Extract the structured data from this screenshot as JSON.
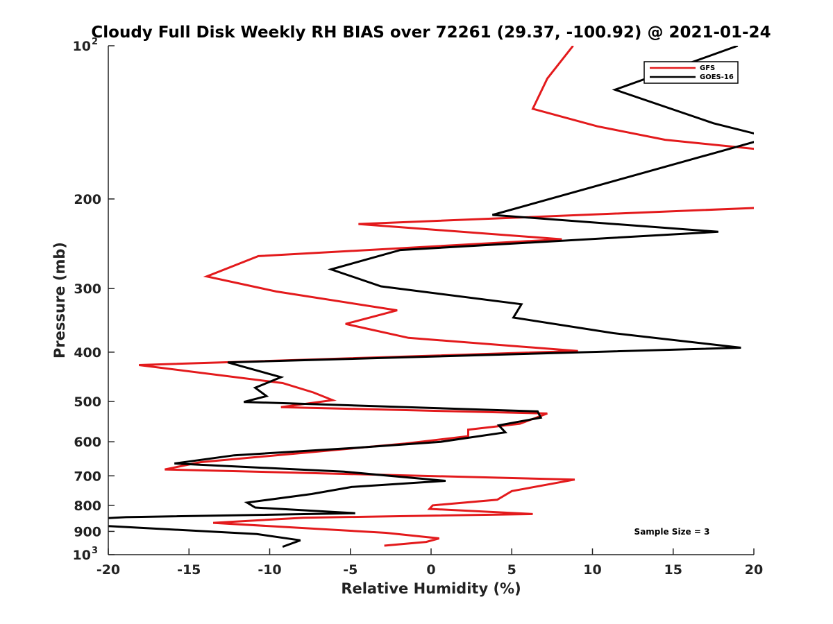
{
  "chart_data": {
    "type": "line",
    "title": "Cloudy Full Disk Weekly RH BIAS over 72261 (29.37, -100.92) @ 2021-01-24",
    "xlabel": "Relative Humidity (%)",
    "ylabel": "Pressure (mb)",
    "xlim": [
      -20,
      20
    ],
    "ylim": [
      100,
      1000
    ],
    "yscale": "log",
    "y_reversed": true,
    "grid": false,
    "legend_position": "top-right",
    "x_ticks": [
      -20,
      -15,
      -10,
      -5,
      0,
      5,
      10,
      15,
      20
    ],
    "x_tick_labels": [
      "-20",
      "-15",
      "-10",
      "-5",
      "0",
      "5",
      "10",
      "15",
      "20"
    ],
    "y_ticks": [
      {
        "value": 100,
        "base": "10",
        "exp": "2"
      },
      {
        "value": 200,
        "label": "200"
      },
      {
        "value": 300,
        "label": "300"
      },
      {
        "value": 400,
        "label": "400"
      },
      {
        "value": 500,
        "label": "500"
      },
      {
        "value": 600,
        "label": "600"
      },
      {
        "value": 700,
        "label": "700"
      },
      {
        "value": 800,
        "label": "800"
      },
      {
        "value": 900,
        "label": "900"
      },
      {
        "value": 1000,
        "base": "10",
        "exp": "3"
      }
    ],
    "annotation": "Sample Size = 3",
    "series": [
      {
        "name": "GFS",
        "color": "#e31a1c",
        "x": [
          8.8,
          7.2,
          6.3,
          10.3,
          14.5,
          20.5,
          20.5,
          -4.5,
          8.1,
          -10.7,
          -13.9,
          -9.6,
          -2.1,
          -5.3,
          -1.4,
          9.1,
          -18.1,
          -9.2,
          -7.3,
          -6.1,
          -9.3,
          7.2,
          5.5,
          2.3,
          2.3,
          -1.6,
          -14.3,
          -16.5,
          8.9,
          5.0,
          4.1,
          0.1,
          -0.1,
          6.3,
          -7.9,
          -13.5,
          -2.8,
          0.5,
          -0.3,
          -2.9
        ],
        "y": [
          100,
          116,
          133,
          144,
          153,
          160,
          208,
          224,
          240,
          259,
          284,
          304,
          331,
          352,
          375,
          398,
          424,
          460,
          480,
          497,
          513,
          528,
          553,
          568,
          585,
          605,
          658,
          680,
          712,
          750,
          780,
          800,
          813,
          832,
          846,
          866,
          906,
          929,
          944,
          960
        ]
      },
      {
        "name": "GOES-16",
        "color": "#000000",
        "x": [
          19.0,
          11.4,
          17.5,
          20.5,
          20.5,
          3.8,
          17.8,
          -1.9,
          -6.2,
          -3.1,
          5.6,
          5.1,
          11.3,
          19.2,
          -12.6,
          -9.3,
          -10.9,
          -10.2,
          -11.6,
          6.6,
          6.8,
          4.2,
          4.6,
          0.6,
          -4.8,
          -12.2,
          -15.9,
          -5.4,
          0.9,
          -4.9,
          -7.4,
          -11.4,
          -10.9,
          -4.7,
          -18.9,
          -20.5,
          -20.5,
          -19.9,
          -10.8,
          -8.1,
          -9.2
        ],
        "y": [
          100,
          122,
          142,
          150,
          153,
          215,
          232,
          252,
          275,
          297,
          322,
          342,
          367,
          392,
          419,
          448,
          470,
          488,
          501,
          523,
          538,
          557,
          575,
          600,
          617,
          638,
          662,
          687,
          716,
          736,
          760,
          790,
          808,
          829,
          844,
          849,
          878,
          879,
          911,
          937,
          965
        ]
      }
    ]
  }
}
